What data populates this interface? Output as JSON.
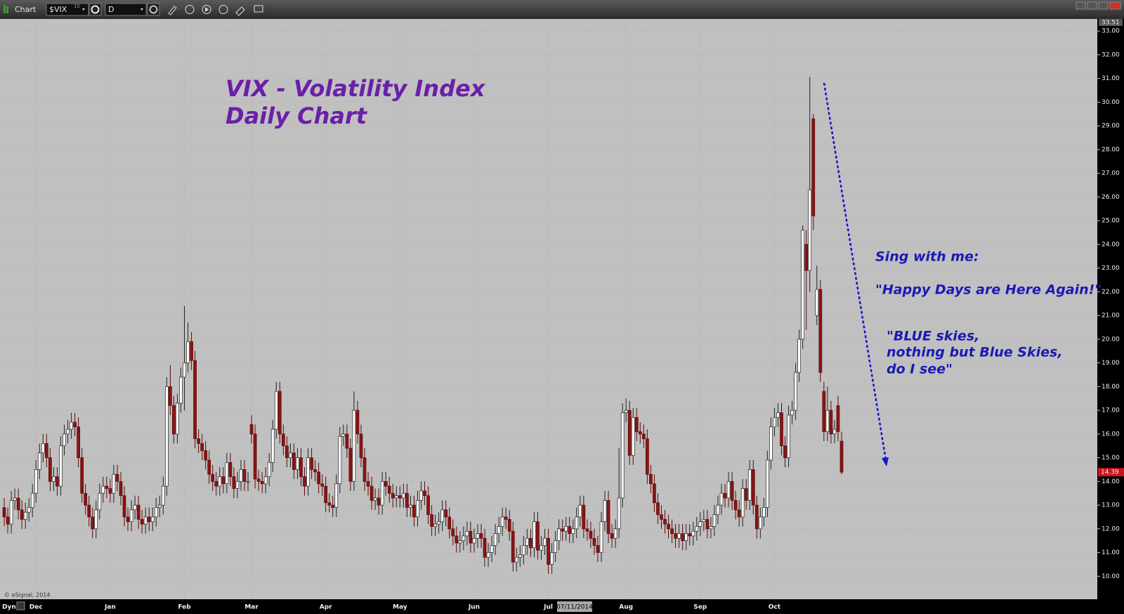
{
  "ui": {
    "window_title": "Chart",
    "symbol": "$VIX",
    "symbol_badge": "15",
    "interval": "D",
    "scale_mode": "Dyn"
  },
  "chart_data": {
    "type": "candlestick",
    "title": "VIX - Volatility Index",
    "subtitle": "Daily Chart",
    "annotations": [
      "Sing with me:",
      "\"Happy Days are Here Again!\"",
      "\"BLUE skies,",
      "nothing but Blue Skies,",
      "do I see\""
    ],
    "copyright": "© eSignal, 2014",
    "crosshair_date": "07/11/2014",
    "last_price": 14.39,
    "up_color": "#ffffff",
    "down_color": "#8b1414",
    "grid": true,
    "ylim": [
      9.03,
      33.51
    ],
    "yticks": [
      {
        "value": 10,
        "label": "10.00"
      },
      {
        "value": 11,
        "label": "11.00"
      },
      {
        "value": 12,
        "label": "12.00"
      },
      {
        "value": 13,
        "label": "13.00"
      },
      {
        "value": 14,
        "label": "14.00"
      },
      {
        "value": 15,
        "label": "15.00"
      },
      {
        "value": 16,
        "label": "16.00"
      },
      {
        "value": 17,
        "label": "17.00"
      },
      {
        "value": 18,
        "label": "18.00"
      },
      {
        "value": 19,
        "label": "19.00"
      },
      {
        "value": 20,
        "label": "20.00"
      },
      {
        "value": 21,
        "label": "21.00"
      },
      {
        "value": 22,
        "label": "22.00"
      },
      {
        "value": 23,
        "label": "23.00"
      },
      {
        "value": 24,
        "label": "24.00"
      },
      {
        "value": 25,
        "label": "25.00"
      },
      {
        "value": 26,
        "label": "26.00"
      },
      {
        "value": 27,
        "label": "27.00"
      },
      {
        "value": 28,
        "label": "28.00"
      },
      {
        "value": 29,
        "label": "29.00"
      },
      {
        "value": 30,
        "label": "30.00"
      },
      {
        "value": 31,
        "label": "31.00"
      },
      {
        "value": 32,
        "label": "32.00"
      },
      {
        "value": 33,
        "label": "33.00"
      }
    ],
    "categories": [
      null,
      null,
      null,
      null,
      null,
      null,
      null,
      null,
      null,
      "Dec",
      null,
      null,
      null,
      null,
      null,
      null,
      null,
      null,
      null,
      null,
      null,
      null,
      null,
      null,
      null,
      null,
      null,
      null,
      null,
      null,
      "Jan",
      null,
      null,
      null,
      null,
      null,
      null,
      null,
      null,
      null,
      null,
      null,
      null,
      null,
      null,
      null,
      null,
      null,
      null,
      null,
      null,
      "Feb",
      null,
      null,
      null,
      null,
      null,
      null,
      null,
      null,
      null,
      null,
      null,
      null,
      null,
      null,
      null,
      null,
      null,
      null,
      "Mar",
      null,
      null,
      null,
      null,
      null,
      null,
      null,
      null,
      null,
      null,
      null,
      null,
      null,
      null,
      null,
      null,
      null,
      null,
      null,
      null,
      "Apr",
      null,
      null,
      null,
      null,
      null,
      null,
      null,
      null,
      null,
      null,
      null,
      null,
      null,
      null,
      null,
      null,
      null,
      null,
      null,
      null,
      "May",
      null,
      null,
      null,
      null,
      null,
      null,
      null,
      null,
      null,
      null,
      null,
      null,
      null,
      null,
      null,
      null,
      null,
      null,
      null,
      null,
      "Jun",
      null,
      null,
      null,
      null,
      null,
      null,
      null,
      null,
      null,
      null,
      null,
      null,
      null,
      null,
      null,
      null,
      null,
      null,
      null,
      null,
      "Jul",
      null,
      null,
      null,
      null,
      null,
      null,
      null,
      null,
      null,
      null,
      null,
      null,
      null,
      null,
      null,
      null,
      null,
      null,
      null,
      null,
      null,
      "Aug",
      null,
      null,
      null,
      null,
      null,
      null,
      null,
      null,
      null,
      null,
      null,
      null,
      null,
      null,
      null,
      null,
      null,
      null,
      null,
      null,
      "Sep",
      null,
      null,
      null,
      null,
      null,
      null,
      null,
      null,
      null,
      null,
      null,
      null,
      null,
      null,
      null,
      null,
      null,
      null,
      null,
      null,
      "Oct",
      null,
      null,
      null,
      null,
      null,
      null,
      null,
      null,
      null,
      null,
      null,
      null,
      null,
      null,
      null,
      null,
      null,
      null,
      null
    ],
    "open": [
      12.9,
      12.5,
      12.2,
      13.2,
      13.3,
      12.8,
      12.4,
      12.7,
      12.9,
      13.5,
      14.5,
      15.2,
      15.6,
      15.0,
      14.0,
      14.2,
      13.8,
      15.5,
      16.0,
      16.2,
      16.5,
      16.3,
      15.0,
      13.5,
      13.0,
      12.5,
      12.0,
      12.8,
      13.5,
      13.8,
      13.7,
      13.5,
      14.3,
      14.0,
      13.4,
      12.5,
      12.3,
      12.8,
      13.0,
      12.4,
      12.2,
      12.5,
      12.3,
      12.5,
      12.9,
      13.0,
      13.8,
      18.0,
      17.2,
      16.0,
      17.3,
      18.4,
      19.0,
      19.9,
      19.1,
      15.8,
      15.6,
      15.3,
      14.9,
      14.3,
      14.0,
      13.8,
      14.2,
      13.9,
      14.8,
      14.2,
      13.7,
      14.0,
      14.5,
      14.0,
      16.4,
      16.0,
      14.1,
      14.0,
      13.9,
      14.2,
      14.8,
      16.2,
      17.8,
      16.0,
      15.5,
      15.0,
      15.2,
      14.5,
      15.0,
      14.2,
      13.8,
      15.0,
      14.5,
      14.4,
      13.9,
      13.8,
      13.1,
      13.0,
      12.9,
      13.9,
      15.9,
      16.0,
      15.4,
      14.0,
      17.0,
      16.0,
      15.0,
      14.0,
      13.8,
      13.2,
      13.3,
      13.0,
      14.0,
      13.8,
      13.5,
      13.3,
      13.4,
      13.3,
      13.5,
      12.9,
      13.0,
      12.5,
      13.2,
      13.6,
      13.4,
      12.6,
      12.1,
      12.2,
      12.3,
      12.8,
      12.5,
      12.0,
      11.7,
      11.4,
      11.5,
      11.7,
      11.9,
      11.4,
      11.6,
      11.8,
      11.6,
      10.8,
      11.0,
      11.3,
      11.8,
      12.1,
      12.5,
      12.4,
      11.9,
      10.6,
      10.8,
      10.9,
      11.3,
      11.6,
      11.2,
      12.3,
      11.1,
      11.3,
      11.6,
      10.5,
      11.0,
      11.5,
      12.0,
      11.9,
      12.1,
      11.8,
      12.0,
      12.5,
      13.0,
      12.0,
      11.9,
      11.6,
      11.3,
      11.0,
      12.3,
      13.2,
      11.8,
      11.6,
      12.0,
      13.3,
      16.9,
      17.0,
      15.1,
      16.7,
      16.1,
      16.0,
      15.8,
      14.3,
      13.9,
      13.1,
      12.6,
      12.4,
      12.2,
      12.0,
      11.8,
      11.6,
      11.8,
      11.5,
      11.8,
      11.7,
      11.9,
      12.1,
      12.3,
      12.4,
      12.0,
      12.1,
      12.6,
      13.0,
      13.5,
      13.3,
      14.0,
      13.2,
      12.8,
      12.5,
      13.7,
      13.2,
      14.5,
      13.0,
      12.0,
      12.5,
      12.9,
      14.9,
      16.3,
      16.7,
      16.9,
      15.5,
      15.0,
      16.8,
      17.0,
      18.6,
      20.0,
      24.0,
      22.9,
      29.3,
      21.0,
      22.1,
      17.8,
      16.1,
      17.0,
      16.0,
      17.2,
      15.7
    ],
    "high": [
      13.3,
      12.9,
      13.6,
      13.7,
      13.7,
      13.2,
      13.1,
      13.3,
      13.9,
      14.9,
      15.6,
      16.0,
      16.0,
      15.4,
      14.6,
      14.6,
      15.9,
      16.4,
      16.6,
      16.9,
      16.9,
      16.7,
      15.4,
      13.9,
      13.4,
      12.9,
      13.2,
      13.9,
      14.2,
      14.2,
      14.1,
      14.7,
      14.7,
      14.4,
      13.8,
      12.9,
      13.2,
      13.4,
      13.4,
      12.8,
      12.9,
      12.9,
      12.9,
      13.3,
      13.4,
      14.2,
      18.4,
      18.9,
      17.6,
      17.7,
      18.8,
      21.4,
      20.7,
      20.3,
      19.5,
      16.2,
      16.0,
      15.7,
      15.3,
      14.7,
      14.4,
      14.6,
      14.6,
      15.2,
      15.2,
      14.6,
      14.4,
      14.9,
      14.9,
      14.4,
      16.8,
      16.4,
      14.5,
      14.4,
      14.6,
      15.2,
      16.6,
      18.2,
      18.2,
      16.4,
      15.9,
      15.6,
      15.6,
      15.4,
      15.4,
      14.6,
      15.4,
      15.4,
      14.9,
      14.8,
      14.3,
      14.2,
      13.5,
      13.4,
      14.3,
      16.3,
      16.4,
      16.4,
      15.8,
      17.8,
      17.4,
      16.4,
      15.4,
      14.4,
      14.2,
      13.7,
      13.7,
      14.4,
      14.4,
      14.2,
      13.9,
      13.8,
      13.8,
      13.9,
      13.9,
      13.4,
      13.4,
      13.6,
      14.0,
      14.0,
      13.8,
      13.0,
      12.6,
      12.7,
      13.2,
      13.2,
      12.9,
      12.4,
      12.1,
      11.9,
      12.1,
      12.3,
      12.3,
      12.0,
      12.2,
      12.2,
      12.0,
      11.4,
      11.7,
      12.2,
      12.5,
      12.9,
      12.9,
      12.8,
      12.3,
      11.2,
      11.3,
      11.7,
      12.0,
      12.0,
      12.7,
      12.7,
      11.7,
      12.0,
      12.0,
      11.4,
      11.9,
      12.4,
      12.4,
      12.5,
      12.5,
      12.4,
      12.9,
      13.4,
      13.4,
      12.4,
      12.3,
      12.0,
      11.7,
      12.7,
      13.6,
      13.6,
      12.2,
      12.4,
      15.4,
      17.3,
      17.5,
      17.4,
      17.1,
      17.1,
      16.5,
      16.4,
      16.2,
      14.7,
      14.3,
      13.5,
      13.0,
      12.8,
      12.6,
      12.4,
      12.2,
      12.2,
      12.2,
      12.2,
      12.2,
      12.3,
      12.5,
      12.7,
      12.8,
      12.8,
      12.5,
      13.0,
      13.4,
      13.9,
      13.9,
      14.4,
      14.4,
      13.6,
      13.2,
      14.1,
      14.1,
      14.9,
      14.9,
      13.4,
      12.9,
      13.3,
      15.3,
      16.7,
      17.1,
      17.3,
      17.3,
      15.9,
      17.2,
      17.4,
      19.0,
      20.4,
      24.8,
      24.6,
      31.06,
      29.5,
      23.1,
      22.5,
      18.2,
      18.0,
      17.4,
      16.6,
      17.6,
      16.1
    ],
    "low": [
      12.1,
      11.8,
      11.8,
      12.8,
      12.4,
      12.0,
      12.0,
      12.3,
      12.5,
      13.1,
      14.1,
      14.8,
      14.6,
      13.6,
      13.6,
      13.4,
      13.4,
      15.1,
      15.6,
      15.8,
      15.9,
      14.6,
      13.1,
      12.6,
      12.1,
      11.6,
      11.6,
      12.4,
      13.1,
      13.3,
      13.1,
      13.1,
      13.6,
      13.0,
      12.1,
      11.9,
      11.9,
      12.4,
      12.0,
      11.8,
      11.8,
      11.9,
      11.9,
      12.1,
      12.5,
      12.6,
      13.4,
      16.8,
      15.6,
      15.6,
      16.9,
      17.0,
      18.6,
      18.7,
      15.4,
      15.2,
      14.9,
      14.5,
      13.9,
      13.6,
      13.4,
      13.4,
      13.5,
      13.5,
      13.8,
      13.3,
      13.3,
      13.6,
      13.6,
      13.6,
      15.6,
      13.7,
      13.6,
      13.5,
      13.5,
      13.8,
      14.4,
      15.8,
      15.6,
      15.1,
      14.6,
      14.6,
      14.1,
      14.1,
      13.8,
      13.4,
      13.4,
      14.1,
      14.0,
      13.5,
      13.4,
      12.7,
      12.7,
      12.5,
      12.5,
      13.5,
      15.5,
      15.0,
      13.6,
      13.6,
      15.6,
      14.6,
      13.6,
      13.4,
      12.8,
      12.8,
      12.6,
      12.6,
      13.4,
      13.1,
      12.9,
      12.9,
      12.9,
      12.9,
      12.5,
      12.5,
      12.1,
      12.1,
      12.8,
      13.0,
      12.2,
      11.7,
      11.7,
      11.8,
      11.9,
      12.1,
      11.6,
      11.3,
      11.0,
      11.0,
      11.1,
      11.3,
      11.0,
      11.0,
      11.2,
      11.2,
      10.4,
      10.4,
      10.6,
      10.9,
      11.4,
      11.7,
      12.0,
      11.5,
      10.2,
      10.2,
      10.4,
      10.5,
      10.9,
      10.8,
      10.8,
      10.7,
      10.7,
      10.9,
      10.1,
      10.1,
      10.6,
      11.1,
      11.5,
      11.5,
      11.4,
      11.4,
      11.6,
      12.1,
      11.6,
      11.5,
      11.2,
      10.9,
      10.6,
      10.6,
      11.9,
      11.4,
      11.2,
      11.2,
      11.6,
      12.9,
      16.5,
      14.7,
      14.7,
      15.7,
      15.6,
      15.4,
      13.9,
      13.5,
      12.7,
      12.2,
      12.0,
      11.8,
      11.6,
      11.4,
      11.2,
      11.2,
      11.1,
      11.1,
      11.3,
      11.3,
      11.5,
      11.7,
      11.9,
      11.6,
      11.6,
      11.7,
      12.2,
      12.6,
      12.9,
      12.9,
      12.8,
      12.4,
      12.1,
      12.1,
      12.8,
      12.8,
      12.6,
      11.6,
      11.6,
      12.1,
      12.5,
      14.5,
      15.9,
      16.3,
      15.1,
      14.6,
      14.6,
      16.4,
      16.6,
      18.2,
      19.6,
      20.4,
      22.0,
      24.6,
      20.6,
      18.2,
      15.7,
      15.7,
      15.6,
      15.6,
      15.7,
      14.3
    ],
    "close": [
      12.5,
      12.2,
      13.2,
      13.3,
      12.8,
      12.4,
      12.7,
      12.9,
      13.5,
      14.5,
      15.2,
      15.6,
      15.0,
      14.0,
      14.2,
      13.8,
      15.5,
      16.0,
      16.2,
      16.5,
      16.3,
      15.0,
      13.5,
      13.0,
      12.5,
      12.0,
      12.8,
      13.5,
      13.8,
      13.7,
      13.5,
      14.3,
      14.0,
      13.4,
      12.5,
      12.3,
      12.8,
      13.0,
      12.4,
      12.2,
      12.5,
      12.3,
      12.5,
      12.9,
      13.0,
      13.8,
      18.0,
      17.2,
      16.0,
      17.3,
      18.4,
      19.0,
      19.9,
      19.1,
      15.8,
      15.6,
      15.3,
      14.9,
      14.3,
      14.0,
      13.8,
      14.2,
      13.9,
      14.8,
      14.2,
      13.7,
      14.0,
      14.5,
      14.0,
      14.0,
      16.0,
      14.1,
      14.0,
      13.9,
      14.2,
      14.8,
      16.2,
      17.8,
      16.0,
      15.5,
      15.0,
      15.2,
      14.5,
      15.0,
      14.2,
      13.8,
      15.0,
      14.5,
      14.4,
      13.9,
      13.8,
      13.1,
      13.0,
      12.9,
      13.9,
      15.9,
      16.0,
      15.4,
      14.0,
      17.0,
      16.0,
      15.0,
      14.0,
      13.8,
      13.2,
      13.3,
      13.0,
      14.0,
      13.8,
      13.5,
      13.3,
      13.4,
      13.3,
      13.5,
      12.9,
      13.0,
      12.5,
      13.2,
      13.6,
      13.4,
      12.6,
      12.1,
      12.2,
      12.3,
      12.8,
      12.5,
      12.0,
      11.7,
      11.4,
      11.5,
      11.7,
      11.9,
      11.4,
      11.6,
      11.8,
      11.6,
      10.8,
      11.0,
      11.3,
      11.8,
      12.1,
      12.5,
      12.4,
      11.9,
      10.6,
      10.8,
      10.9,
      11.3,
      11.6,
      11.2,
      12.3,
      11.1,
      11.3,
      11.6,
      10.5,
      11.0,
      11.5,
      12.0,
      11.9,
      12.1,
      11.8,
      12.0,
      12.5,
      13.0,
      12.0,
      11.9,
      11.6,
      11.3,
      11.0,
      12.3,
      13.2,
      11.8,
      11.6,
      12.0,
      13.3,
      16.9,
      17.0,
      15.1,
      16.7,
      16.1,
      16.0,
      15.8,
      14.3,
      13.9,
      13.1,
      12.6,
      12.4,
      12.2,
      12.0,
      11.8,
      11.6,
      11.8,
      11.5,
      11.8,
      11.7,
      11.9,
      12.1,
      12.3,
      12.4,
      12.0,
      12.1,
      12.6,
      13.0,
      13.5,
      13.3,
      14.0,
      13.2,
      12.8,
      12.5,
      13.7,
      13.2,
      14.5,
      13.0,
      12.0,
      12.5,
      12.9,
      14.9,
      16.3,
      16.7,
      16.9,
      15.5,
      15.0,
      16.8,
      17.0,
      18.6,
      20.0,
      24.6,
      22.9,
      26.3,
      25.2,
      22.1,
      18.6,
      16.1,
      17.0,
      16.0,
      16.2,
      16.1,
      14.39
    ]
  }
}
